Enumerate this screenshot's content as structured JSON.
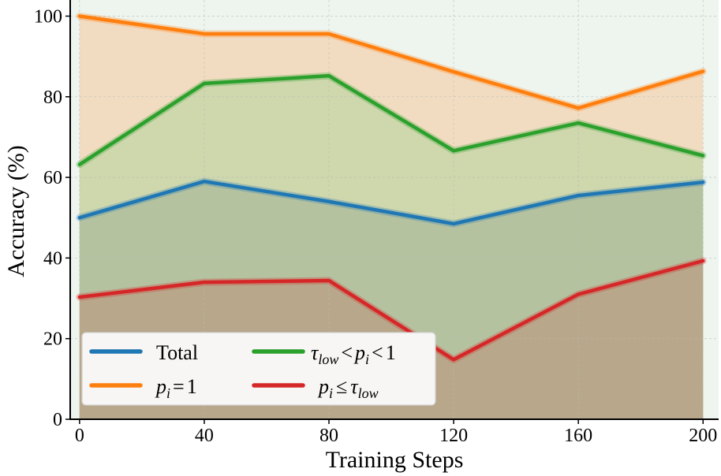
{
  "chart_data": {
    "type": "area",
    "title": "",
    "xlabel": "Training Steps",
    "ylabel": "Accuracy (%)",
    "x": [
      0,
      40,
      80,
      120,
      160,
      200
    ],
    "xticks": [
      "0",
      "40",
      "80",
      "120",
      "160",
      "200"
    ],
    "yticks": [
      "0",
      "20",
      "40",
      "60",
      "80",
      "100"
    ],
    "xlim": [
      -3,
      205
    ],
    "ylim": [
      0,
      104
    ],
    "grid": true,
    "legend_position": "lower-left",
    "series": [
      {
        "key": "total",
        "name": "Total",
        "values": [
          50,
          59,
          54,
          48.5,
          55.5,
          58.8
        ],
        "color": "#1f77b4"
      },
      {
        "key": "p1",
        "name": "p_i = 1",
        "values": [
          100,
          95.6,
          95.6,
          86.2,
          77.2,
          86.3
        ],
        "color": "#ff7f0e"
      },
      {
        "key": "mid",
        "name": "τ_low < p_i < 1",
        "values": [
          63.2,
          83.3,
          85.2,
          66.6,
          73.5,
          65.4
        ],
        "color": "#2ca02c"
      },
      {
        "key": "low",
        "name": "p_i ≤ τ_low",
        "values": [
          30.3,
          34,
          34.4,
          14.8,
          31,
          39.3
        ],
        "color": "#d62728"
      }
    ],
    "legend": {
      "total": {
        "label": "Total"
      },
      "p1": {
        "p": "p",
        "sub_i": "i",
        "op": "=",
        "one": "1"
      },
      "mid": {
        "tau": "τ",
        "sub_low": "low",
        "lt1": "<",
        "p": "p",
        "sub_i": "i",
        "lt2": "<",
        "one": "1"
      },
      "low": {
        "p": "p",
        "sub_i": "i",
        "le": "≤",
        "tau": "τ",
        "sub_low": "low"
      }
    },
    "colors": {
      "plot_background": "#eef5ef",
      "fill_orange": "#f2dcc1",
      "fill_green": "#cfd7ad",
      "fill_blue": "#b4c2a0",
      "fill_red": "#b8a78a",
      "grid": "#b9bdb9",
      "legend_bg": "#f7f6f4"
    }
  }
}
